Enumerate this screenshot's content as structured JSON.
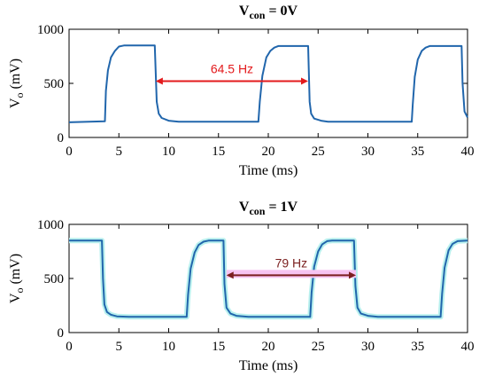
{
  "colors": {
    "line": "#2166ac",
    "top_arrow": "#e31a1c",
    "top_label": "#e31a1c",
    "bottom_arrow": "#7b1f1f",
    "bottom_label": "#7b1f1f",
    "bottom_highlight": "#f7c4f2",
    "bottom_halo": "#b8f0ee"
  },
  "chart_data": [
    {
      "type": "line",
      "title_main": "V",
      "title_sub": "con",
      "title_rest": " = 0V",
      "xlabel": "Time (ms)",
      "ylabel_main": "V",
      "ylabel_sub": "o",
      "ylabel_rest": " (mV)",
      "xlim": [
        0,
        40
      ],
      "ylim": [
        0,
        1000
      ],
      "xticks": [
        "0",
        "5",
        "10",
        "15",
        "20",
        "25",
        "30",
        "35",
        "40"
      ],
      "yticks": [
        "0",
        "500",
        "1000"
      ],
      "series": [
        {
          "x": [
            0,
            3.6,
            3.7,
            3.9,
            4.2,
            4.6,
            5.0,
            5.5,
            8.6,
            8.8,
            9.0,
            9.3,
            10.0,
            11.0,
            19.0,
            19.15,
            19.4,
            19.8,
            20.2,
            20.6,
            21.0,
            24.0,
            24.15,
            24.3,
            24.6,
            25.3,
            26.0,
            34.4,
            34.5,
            34.7,
            35.0,
            35.4,
            35.8,
            36.2,
            39.4,
            39.5,
            39.7,
            40
          ],
          "y": [
            140,
            150,
            430,
            620,
            740,
            800,
            840,
            850,
            850,
            330,
            220,
            180,
            155,
            145,
            145,
            330,
            570,
            740,
            800,
            830,
            845,
            845,
            330,
            220,
            175,
            155,
            145,
            145,
            300,
            560,
            720,
            800,
            830,
            845,
            845,
            500,
            240,
            185
          ]
        }
      ],
      "annotation": {
        "text": "64.5 Hz",
        "x_start": 8.7,
        "x_end": 24.0,
        "y": 520
      }
    },
    {
      "type": "line",
      "title_main": "V",
      "title_sub": "con",
      "title_rest": " = 1V",
      "xlabel": "Time (ms)",
      "ylabel_main": "V",
      "ylabel_sub": "o",
      "ylabel_rest": " (mV)",
      "xlim": [
        0,
        40
      ],
      "ylim": [
        0,
        1000
      ],
      "xticks": [
        "0",
        "5",
        "10",
        "15",
        "20",
        "25",
        "30",
        "35",
        "40"
      ],
      "yticks": [
        "0",
        "500",
        "1000"
      ],
      "series": [
        {
          "x": [
            0,
            3.3,
            3.4,
            3.55,
            3.8,
            4.2,
            4.8,
            6.0,
            11.8,
            11.95,
            12.2,
            12.6,
            13.0,
            13.5,
            14.0,
            15.5,
            15.6,
            15.8,
            16.2,
            16.8,
            18.0,
            24.2,
            24.35,
            24.6,
            25.0,
            25.4,
            25.9,
            26.4,
            28.6,
            28.75,
            28.95,
            29.3,
            30.0,
            31.0,
            37.3,
            37.45,
            37.7,
            38.1,
            38.5,
            39.0,
            40
          ],
          "y": [
            850,
            850,
            500,
            260,
            190,
            165,
            150,
            145,
            145,
            350,
            590,
            740,
            810,
            840,
            850,
            850,
            450,
            230,
            175,
            155,
            145,
            145,
            370,
            610,
            750,
            815,
            845,
            850,
            850,
            430,
            230,
            175,
            155,
            145,
            145,
            360,
            600,
            760,
            820,
            845,
            850
          ]
        }
      ],
      "annotation": {
        "text": "79 Hz",
        "x_start": 15.8,
        "x_end": 28.8,
        "y": 530
      }
    }
  ]
}
